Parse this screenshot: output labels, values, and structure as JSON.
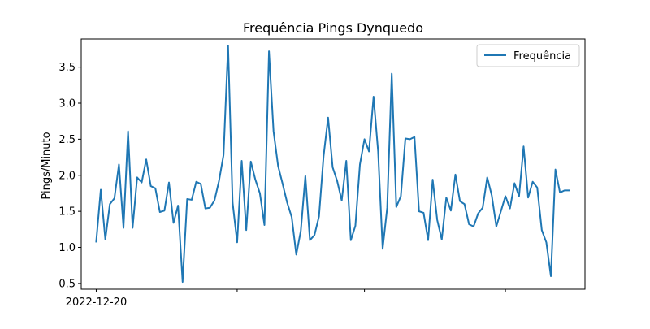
{
  "chart_data": {
    "type": "line",
    "title": "Frequência Pings Dynquedo",
    "xlabel": "",
    "ylabel": "Pings/Minuto",
    "ylim": [
      0.42,
      3.89
    ],
    "yticks": [
      0.5,
      1.0,
      1.5,
      2.0,
      2.5,
      3.0,
      3.5
    ],
    "ytick_labels": [
      "0.5",
      "1.0",
      "1.5",
      "2.0",
      "2.5",
      "3.0",
      "3.5"
    ],
    "x_start": "2022-12-20",
    "x_major_tick_labels": [
      {
        "x": 0,
        "label": "2022-12-20"
      },
      {
        "x": 31,
        "label": ""
      },
      {
        "x": 59,
        "label": ""
      },
      {
        "x": 90,
        "label": ""
      }
    ],
    "xlim": [
      -3.3,
      107.5
    ],
    "grid": false,
    "legend": {
      "position": "top-right"
    },
    "colors": {
      "series": "#1f77b4",
      "axes": "#000000",
      "legend_border": "#cccccc"
    },
    "series": [
      {
        "name": "Frequência",
        "x": [
          0,
          1,
          2,
          3,
          4,
          5,
          6,
          7,
          8,
          9,
          10,
          11,
          12,
          13,
          14,
          15,
          16,
          17,
          18,
          19,
          20,
          21,
          22,
          23,
          24,
          25,
          26,
          27,
          28,
          29,
          30,
          31,
          32,
          33,
          34,
          35,
          36,
          37,
          38,
          39,
          40,
          41,
          42,
          43,
          44,
          45,
          46,
          47,
          48,
          49,
          50,
          51,
          52,
          53,
          54,
          55,
          56,
          57,
          58,
          59,
          60,
          61,
          62,
          63,
          64,
          65,
          66,
          67,
          68,
          69,
          70,
          71,
          72,
          73,
          74,
          75,
          76,
          77,
          78,
          79,
          80,
          81,
          82,
          83,
          84,
          85,
          86,
          87,
          88,
          89,
          90,
          91,
          92,
          93,
          94,
          95,
          96,
          97,
          98,
          99,
          100,
          101,
          102,
          103,
          104
        ],
        "values": [
          1.08,
          1.8,
          1.11,
          1.6,
          1.68,
          2.15,
          1.27,
          2.61,
          1.27,
          1.97,
          1.9,
          2.22,
          1.85,
          1.82,
          1.49,
          1.51,
          1.9,
          1.34,
          1.58,
          0.52,
          1.67,
          1.66,
          1.91,
          1.88,
          1.54,
          1.55,
          1.65,
          1.92,
          2.28,
          3.8,
          1.62,
          1.07,
          2.2,
          1.24,
          2.19,
          1.94,
          1.75,
          1.31,
          3.72,
          2.61,
          2.13,
          1.88,
          1.62,
          1.42,
          0.9,
          1.23,
          1.99,
          1.1,
          1.17,
          1.43,
          2.26,
          2.8,
          2.11,
          1.92,
          1.65,
          2.2,
          1.1,
          1.3,
          2.15,
          2.5,
          2.33,
          3.09,
          2.33,
          0.98,
          1.55,
          3.41,
          1.56,
          1.71,
          2.51,
          2.5,
          2.53,
          1.5,
          1.48,
          1.1,
          1.94,
          1.38,
          1.11,
          1.69,
          1.51,
          2.01,
          1.64,
          1.6,
          1.32,
          1.29,
          1.47,
          1.55,
          1.97,
          1.72,
          1.29,
          1.5,
          1.71,
          1.54,
          1.89,
          1.71,
          2.4,
          1.69,
          1.91,
          1.83,
          1.24,
          1.07,
          0.6,
          2.08,
          1.76,
          1.79,
          1.79
        ]
      }
    ]
  }
}
